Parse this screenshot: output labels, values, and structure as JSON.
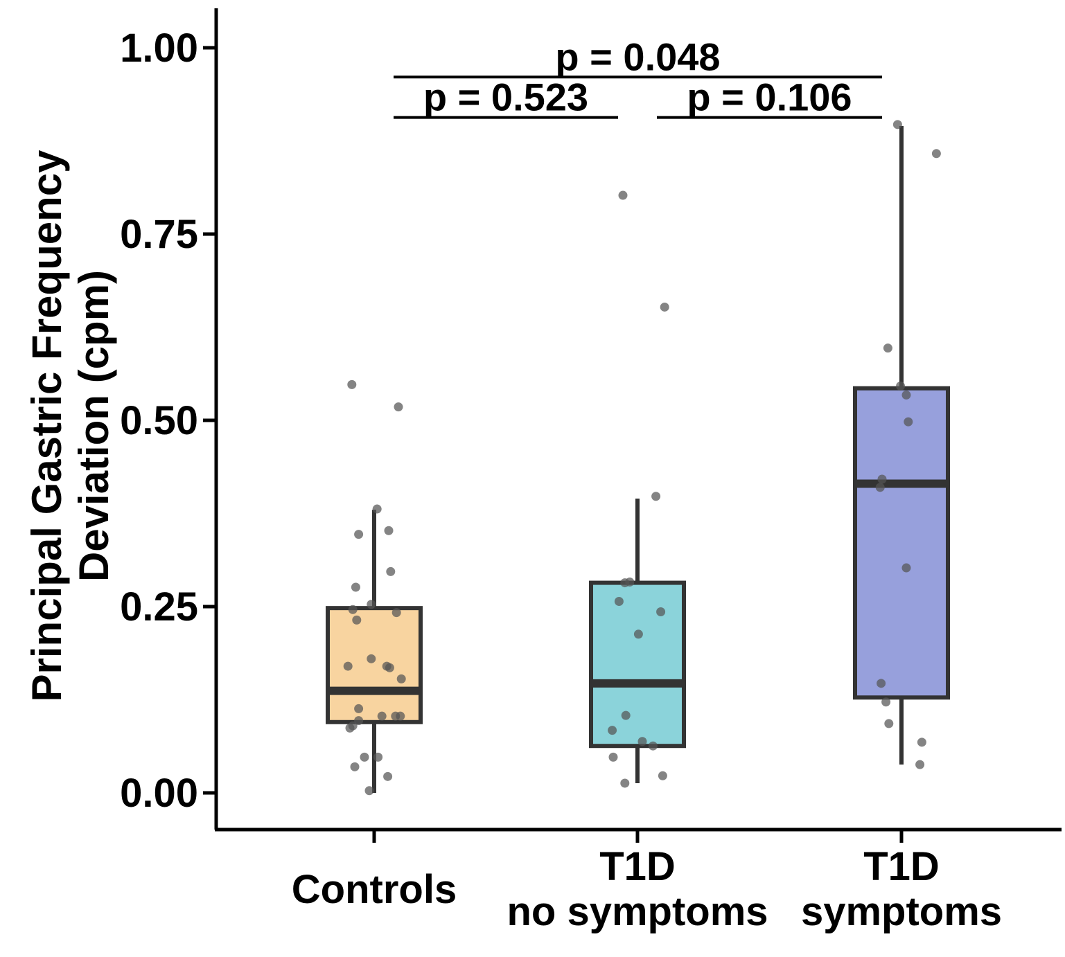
{
  "chart_data": {
    "type": "boxplot",
    "ylabel_lines": [
      "Principal Gastric Frequency",
      "Deviation (cpm)"
    ],
    "ylim": [
      -0.05,
      1.05
    ],
    "yticks": [
      {
        "value": 0.0,
        "label": "0.00"
      },
      {
        "value": 0.25,
        "label": "0.25"
      },
      {
        "value": 0.5,
        "label": "0.50"
      },
      {
        "value": 0.75,
        "label": "0.75"
      },
      {
        "value": 1.0,
        "label": "1.00"
      }
    ],
    "categories": [
      {
        "label_lines": [
          "Controls"
        ]
      },
      {
        "label_lines": [
          "T1D",
          "no symptoms"
        ]
      },
      {
        "label_lines": [
          "T1D",
          "symptoms"
        ]
      }
    ],
    "colors": {
      "box_fills": [
        "#f8d4a0",
        "#8bd3da",
        "#97a0dc"
      ],
      "box_stroke": "#333333",
      "point": "#555555",
      "axis": "#000000"
    },
    "boxes": [
      {
        "q1": 0.095,
        "median": 0.137,
        "q3": 0.248,
        "whisker_low": 0.0,
        "whisker_high": 0.38
      },
      {
        "q1": 0.063,
        "median": 0.147,
        "q3": 0.282,
        "whisker_low": 0.013,
        "whisker_high": 0.395
      },
      {
        "q1": 0.128,
        "median": 0.415,
        "q3": 0.543,
        "whisker_low": 0.038,
        "whisker_high": 0.895
      }
    ],
    "points": [
      [
        {
          "dx": -0.23,
          "y": 0.548
        },
        {
          "dx": 0.25,
          "y": 0.518
        },
        {
          "dx": 0.03,
          "y": 0.381
        },
        {
          "dx": -0.16,
          "y": 0.347
        },
        {
          "dx": 0.15,
          "y": 0.352
        },
        {
          "dx": 0.17,
          "y": 0.297
        },
        {
          "dx": -0.19,
          "y": 0.276
        },
        {
          "dx": -0.22,
          "y": 0.246
        },
        {
          "dx": -0.03,
          "y": 0.253
        },
        {
          "dx": 0.23,
          "y": 0.242
        },
        {
          "dx": -0.18,
          "y": 0.232
        },
        {
          "dx": -0.03,
          "y": 0.18
        },
        {
          "dx": -0.27,
          "y": 0.17
        },
        {
          "dx": 0.13,
          "y": 0.17
        },
        {
          "dx": 0.16,
          "y": 0.168
        },
        {
          "dx": 0.28,
          "y": 0.153
        },
        {
          "dx": -0.16,
          "y": 0.113
        },
        {
          "dx": 0.08,
          "y": 0.103
        },
        {
          "dx": 0.22,
          "y": 0.103
        },
        {
          "dx": 0.27,
          "y": 0.103
        },
        {
          "dx": -0.16,
          "y": 0.097
        },
        {
          "dx": -0.22,
          "y": 0.09
        },
        {
          "dx": -0.25,
          "y": 0.087
        },
        {
          "dx": -0.1,
          "y": 0.048
        },
        {
          "dx": 0.04,
          "y": 0.048
        },
        {
          "dx": -0.2,
          "y": 0.035
        },
        {
          "dx": 0.14,
          "y": 0.022
        },
        {
          "dx": -0.05,
          "y": 0.003
        }
      ],
      [
        {
          "dx": -0.15,
          "y": 0.802
        },
        {
          "dx": 0.28,
          "y": 0.652
        },
        {
          "dx": 0.19,
          "y": 0.398
        },
        {
          "dx": -0.13,
          "y": 0.282
        },
        {
          "dx": -0.08,
          "y": 0.283
        },
        {
          "dx": -0.19,
          "y": 0.257
        },
        {
          "dx": 0.24,
          "y": 0.243
        },
        {
          "dx": 0.01,
          "y": 0.213
        },
        {
          "dx": -0.12,
          "y": 0.104
        },
        {
          "dx": -0.26,
          "y": 0.084
        },
        {
          "dx": 0.05,
          "y": 0.069
        },
        {
          "dx": 0.16,
          "y": 0.063
        },
        {
          "dx": -0.25,
          "y": 0.048
        },
        {
          "dx": 0.26,
          "y": 0.023
        },
        {
          "dx": -0.13,
          "y": 0.013
        }
      ],
      [
        {
          "dx": -0.04,
          "y": 0.897
        },
        {
          "dx": 0.36,
          "y": 0.858
        },
        {
          "dx": -0.14,
          "y": 0.597
        },
        {
          "dx": -0.01,
          "y": 0.546
        },
        {
          "dx": 0.05,
          "y": 0.534
        },
        {
          "dx": 0.07,
          "y": 0.498
        },
        {
          "dx": -0.2,
          "y": 0.421
        },
        {
          "dx": -0.22,
          "y": 0.41
        },
        {
          "dx": 0.05,
          "y": 0.302
        },
        {
          "dx": -0.21,
          "y": 0.147
        },
        {
          "dx": -0.16,
          "y": 0.122
        },
        {
          "dx": -0.13,
          "y": 0.093
        },
        {
          "dx": 0.21,
          "y": 0.068
        },
        {
          "dx": 0.19,
          "y": 0.038
        }
      ]
    ],
    "comparisons": [
      {
        "label": "p = 0.523",
        "from": 0,
        "to": 1,
        "y": 0.9
      },
      {
        "label": "p = 0.106",
        "from": 1,
        "to": 2,
        "y": 0.9
      },
      {
        "label": "p = 0.048",
        "from": 0,
        "to": 2,
        "y": 0.97
      }
    ]
  }
}
